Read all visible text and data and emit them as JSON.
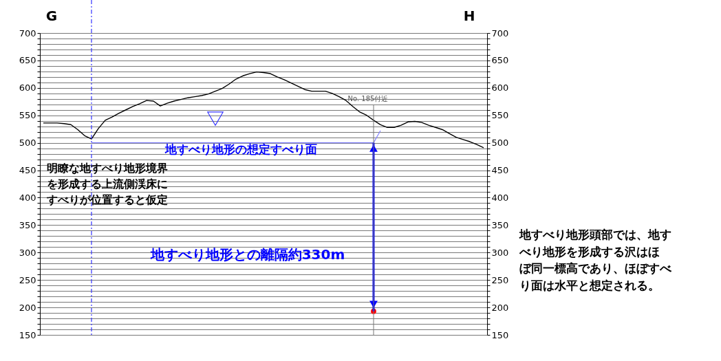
{
  "chart_data": {
    "type": "line",
    "categories": [
      null,
      null,
      null,
      null,
      null,
      null,
      null,
      null,
      null,
      null,
      null,
      null,
      null,
      null,
      null,
      null,
      null,
      null,
      null,
      null,
      null,
      null,
      null,
      null,
      null,
      null,
      null,
      null,
      null,
      null,
      null,
      null,
      null,
      null,
      null,
      null,
      null,
      null,
      null,
      null,
      null,
      null,
      null,
      null,
      null,
      null,
      null,
      null,
      null,
      null,
      null,
      null,
      null,
      null,
      null,
      null,
      null,
      null,
      null,
      null,
      null,
      null,
      null,
      null,
      null
    ],
    "series": [
      {
        "color": "#000000",
        "values": [
          536,
          536,
          536,
          535,
          533,
          524,
          513,
          507,
          526,
          541,
          547,
          554,
          560,
          566,
          571,
          577,
          576,
          567,
          572,
          576,
          579,
          582,
          584,
          586,
          589,
          594,
          599,
          607,
          616,
          622,
          626,
          629,
          628,
          626,
          620,
          615,
          609,
          603,
          597,
          594,
          594,
          594,
          590,
          584,
          577,
          566,
          556,
          550,
          541,
          533,
          528,
          528,
          532,
          538,
          539,
          537,
          532,
          528,
          524,
          517,
          510,
          506,
          502,
          497,
          491
        ]
      },
      {
        "color": "#8080ff",
        "values": [
          null,
          null,
          null,
          null,
          null,
          null,
          null,
          500,
          500,
          500,
          500,
          500,
          500,
          500,
          500,
          500,
          500,
          500,
          500,
          500,
          500,
          500,
          500,
          500,
          500,
          500,
          500,
          500,
          500,
          500,
          500,
          500,
          500,
          500,
          500,
          500,
          500,
          500,
          500,
          500,
          500,
          500,
          500,
          500,
          500,
          500,
          500,
          500,
          500,
          522,
          null,
          null,
          null,
          null,
          null,
          null,
          null,
          null,
          null,
          null,
          null,
          null,
          null,
          null,
          null
        ]
      },
      {
        "type": "scatter",
        "color": "#ff0000",
        "values": [
          null,
          null,
          null,
          null,
          null,
          null,
          null,
          null,
          null,
          null,
          null,
          null,
          null,
          null,
          null,
          null,
          null,
          null,
          null,
          null,
          null,
          null,
          null,
          null,
          null,
          null,
          null,
          null,
          null,
          null,
          null,
          null,
          null,
          null,
          null,
          null,
          null,
          null,
          null,
          null,
          null,
          null,
          null,
          null,
          null,
          null,
          null,
          null,
          193,
          null,
          null,
          null,
          null,
          null,
          null,
          null,
          null,
          null,
          null,
          null,
          null,
          null,
          null,
          null,
          null
        ]
      }
    ],
    "ylim": [
      150,
      700
    ],
    "yticks": [
      150,
      {
        "value": 160,
        "label": null
      },
      {
        "value": 170,
        "label": null
      },
      {
        "value": 180,
        "label": null
      },
      {
        "value": 190,
        "label": null
      },
      200,
      {
        "value": 210,
        "label": null
      },
      {
        "value": 220,
        "label": null
      },
      {
        "value": 230,
        "label": null
      },
      {
        "value": 240,
        "label": null
      },
      250,
      {
        "value": 260,
        "label": null
      },
      {
        "value": 270,
        "label": null
      },
      {
        "value": 280,
        "label": null
      },
      {
        "value": 290,
        "label": null
      },
      300,
      {
        "value": 310,
        "label": null
      },
      {
        "value": 320,
        "label": null
      },
      {
        "value": 330,
        "label": null
      },
      {
        "value": 340,
        "label": null
      },
      350,
      {
        "value": 360,
        "label": null
      },
      {
        "value": 370,
        "label": null
      },
      {
        "value": 380,
        "label": null
      },
      {
        "value": 390,
        "label": null
      },
      400,
      {
        "value": 410,
        "label": null
      },
      {
        "value": 420,
        "label": null
      },
      {
        "value": 430,
        "label": null
      },
      {
        "value": 440,
        "label": null
      },
      450,
      {
        "value": 460,
        "label": null
      },
      {
        "value": 470,
        "label": null
      },
      {
        "value": 480,
        "label": null
      },
      {
        "value": 490,
        "label": null
      },
      500,
      {
        "value": 510,
        "label": null
      },
      {
        "value": 520,
        "label": null
      },
      {
        "value": 530,
        "label": null
      },
      {
        "value": 540,
        "label": null
      },
      550,
      {
        "value": 560,
        "label": null
      },
      {
        "value": 570,
        "label": null
      },
      {
        "value": 580,
        "label": null
      },
      {
        "value": 590,
        "label": null
      },
      600,
      {
        "value": 610,
        "label": null
      },
      {
        "value": 620,
        "label": null
      },
      {
        "value": 630,
        "label": null
      },
      {
        "value": 640,
        "label": null
      },
      650,
      {
        "value": 660,
        "label": null
      },
      {
        "value": 670,
        "label": null
      },
      {
        "value": 680,
        "label": null
      },
      {
        "value": 690,
        "label": null
      },
      700
    ],
    "y2lim": [
      150,
      700
    ],
    "y2ticks": [
      150,
      {
        "value": 160,
        "label": null
      },
      {
        "value": 170,
        "label": null
      },
      {
        "value": 180,
        "label": null
      },
      {
        "value": 190,
        "label": null
      },
      200,
      {
        "value": 210,
        "label": null
      },
      {
        "value": 220,
        "label": null
      },
      {
        "value": 230,
        "label": null
      },
      {
        "value": 240,
        "label": null
      },
      250,
      {
        "value": 260,
        "label": null
      },
      {
        "value": 270,
        "label": null
      },
      {
        "value": 280,
        "label": null
      },
      {
        "value": 290,
        "label": null
      },
      300,
      {
        "value": 310,
        "label": null
      },
      {
        "value": 320,
        "label": null
      },
      {
        "value": 330,
        "label": null
      },
      {
        "value": 340,
        "label": null
      },
      350,
      {
        "value": 360,
        "label": null
      },
      {
        "value": 370,
        "label": null
      },
      {
        "value": 380,
        "label": null
      },
      {
        "value": 390,
        "label": null
      },
      400,
      {
        "value": 410,
        "label": null
      },
      {
        "value": 420,
        "label": null
      },
      {
        "value": 430,
        "label": null
      },
      {
        "value": 440,
        "label": null
      },
      450,
      {
        "value": 460,
        "label": null
      },
      {
        "value": 470,
        "label": null
      },
      {
        "value": 480,
        "label": null
      },
      {
        "value": 490,
        "label": null
      },
      500,
      {
        "value": 510,
        "label": null
      },
      {
        "value": 520,
        "label": null
      },
      {
        "value": 530,
        "label": null
      },
      {
        "value": 540,
        "label": null
      },
      550,
      {
        "value": 560,
        "label": null
      },
      {
        "value": 570,
        "label": null
      },
      {
        "value": 580,
        "label": null
      },
      {
        "value": 590,
        "label": null
      },
      600,
      {
        "value": 610,
        "label": null
      },
      {
        "value": 620,
        "label": null
      },
      {
        "value": 630,
        "label": null
      },
      {
        "value": 640,
        "label": null
      },
      650,
      {
        "value": 660,
        "label": null
      },
      {
        "value": 670,
        "label": null
      },
      {
        "value": 680,
        "label": null
      },
      {
        "value": 690,
        "label": null
      },
      700
    ],
    "grid": "y",
    "annotations": [
      "G",
      "H",
      "地すべり地形の想定すべり面",
      "明瞭な地すべり地形境界を形成する上流側渓床にすべりが位置すると仮定",
      "地すべり地形との離隔約330m",
      "No. 185付近",
      "地すべり地形頭部では、地すべり地形を形成する沢はほぼ同一標高であり、ほぼすべり面は水平と想定される。"
    ]
  }
}
